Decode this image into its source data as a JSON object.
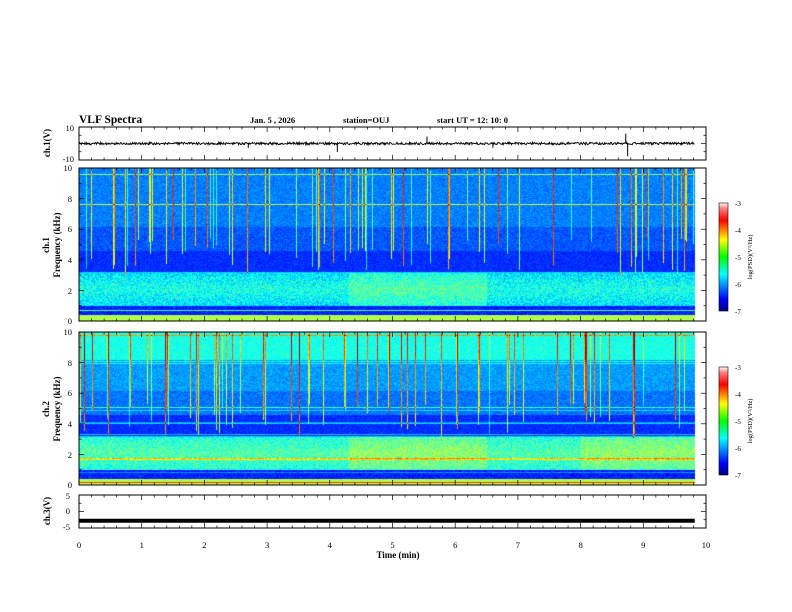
{
  "chart_data": {
    "type": "heatmap",
    "header": {
      "title": "VLF Spectra",
      "date": "Jan. 5 , 2026",
      "station": "station=OUJ",
      "start": "start UT =  12: 10: 0"
    },
    "x_axis": {
      "label": "Time (min)",
      "range": [
        0,
        10
      ],
      "ticks": [
        "0",
        "1",
        "2",
        "3",
        "4",
        "5",
        "6",
        "7",
        "8",
        "9",
        "10"
      ],
      "data_end_min": 9.82
    },
    "panels": [
      {
        "id": "ch1_waveform",
        "type": "line",
        "ylabel": "ch.1(V)",
        "ylim": [
          -10,
          10
        ],
        "yticks": [
          "10",
          "-10"
        ],
        "baseline_v": 0
      },
      {
        "id": "ch1_spectrogram",
        "type": "heatmap",
        "ylabel_top": "ch.1",
        "ylabel": "Frequency (kHz)",
        "ylim": [
          0,
          10
        ],
        "yticks": [
          "0",
          "2",
          "4",
          "6",
          "8",
          "10"
        ],
        "colorbar": {
          "label": "log(PSD)(V²/Hz)",
          "range": [
            -7,
            -3
          ],
          "ticks": [
            "-3",
            "-4",
            "-5",
            "-6",
            "-7"
          ]
        }
      },
      {
        "id": "ch2_spectrogram",
        "type": "heatmap",
        "ylabel_top": "ch.2",
        "ylabel": "Frequency (kHz)",
        "ylim": [
          0,
          10
        ],
        "yticks": [
          "0",
          "2",
          "4",
          "6",
          "8",
          "10"
        ],
        "colorbar": {
          "label": "log(PSD)(V²/Hz)",
          "range": [
            -7,
            -3
          ],
          "ticks": [
            "-3",
            "-4",
            "-5",
            "-6",
            "-7"
          ]
        }
      },
      {
        "id": "ch3_waveform",
        "type": "line",
        "ylabel": "ch.3(V)",
        "ylim": [
          -5,
          5
        ],
        "yticks": [
          "5",
          "0",
          "-5"
        ],
        "level_v": -2.8
      }
    ]
  }
}
